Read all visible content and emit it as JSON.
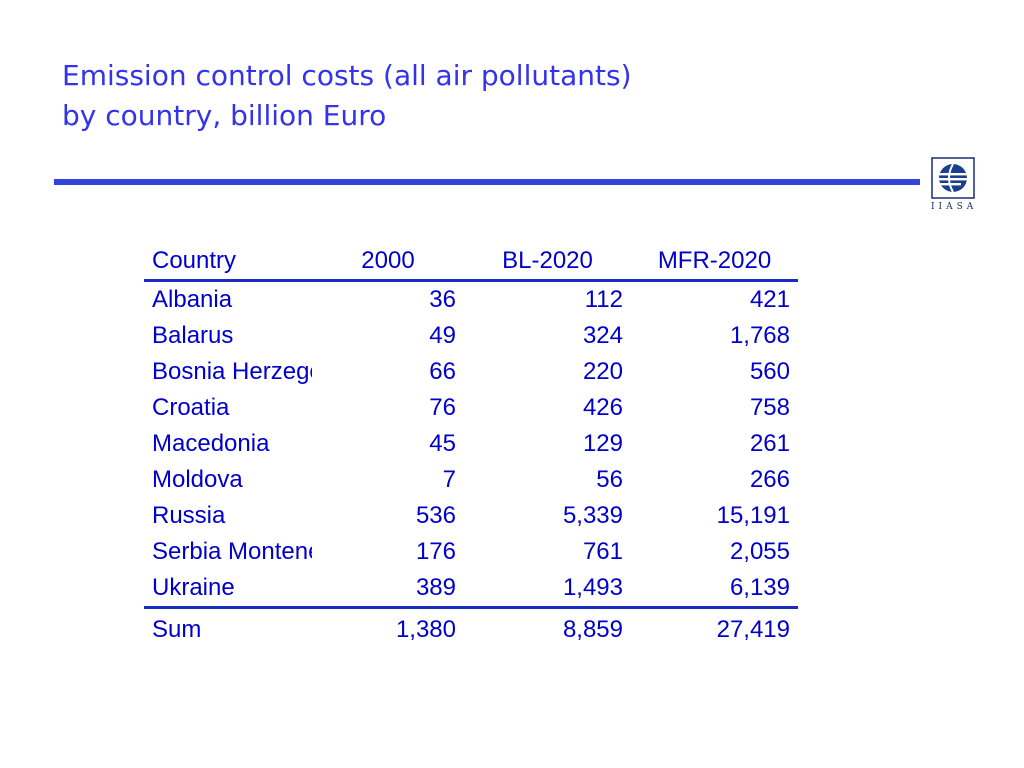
{
  "title": {
    "line1": "Emission control costs (all air pollutants)",
    "line2": "by country, billion Euro"
  },
  "logo": {
    "name": "iiasa-globe-icon",
    "text": "IIASA"
  },
  "colors": {
    "title": "#3333ee",
    "rule": "#3344dd",
    "table_text": "#0000cc"
  },
  "table": {
    "headers": [
      "Country",
      "2000",
      "BL-2020",
      "MFR-2020"
    ],
    "rows": [
      [
        "Albania",
        "36",
        "112",
        "421"
      ],
      [
        "Balarus",
        "49",
        "324",
        "1,768"
      ],
      [
        "Bosnia Herzegovina",
        "66",
        "220",
        "560"
      ],
      [
        "Croatia",
        "76",
        "426",
        "758"
      ],
      [
        "Macedonia",
        "45",
        "129",
        "261"
      ],
      [
        "Moldova",
        "7",
        "56",
        "266"
      ],
      [
        "Russia",
        "536",
        "5,339",
        "15,191"
      ],
      [
        "Serbia Montenegro",
        "176",
        "761",
        "2,055"
      ],
      [
        "Ukraine",
        "389",
        "1,493",
        "6,139"
      ]
    ],
    "sum": [
      "Sum",
      "1,380",
      "8,859",
      "27,419"
    ]
  }
}
